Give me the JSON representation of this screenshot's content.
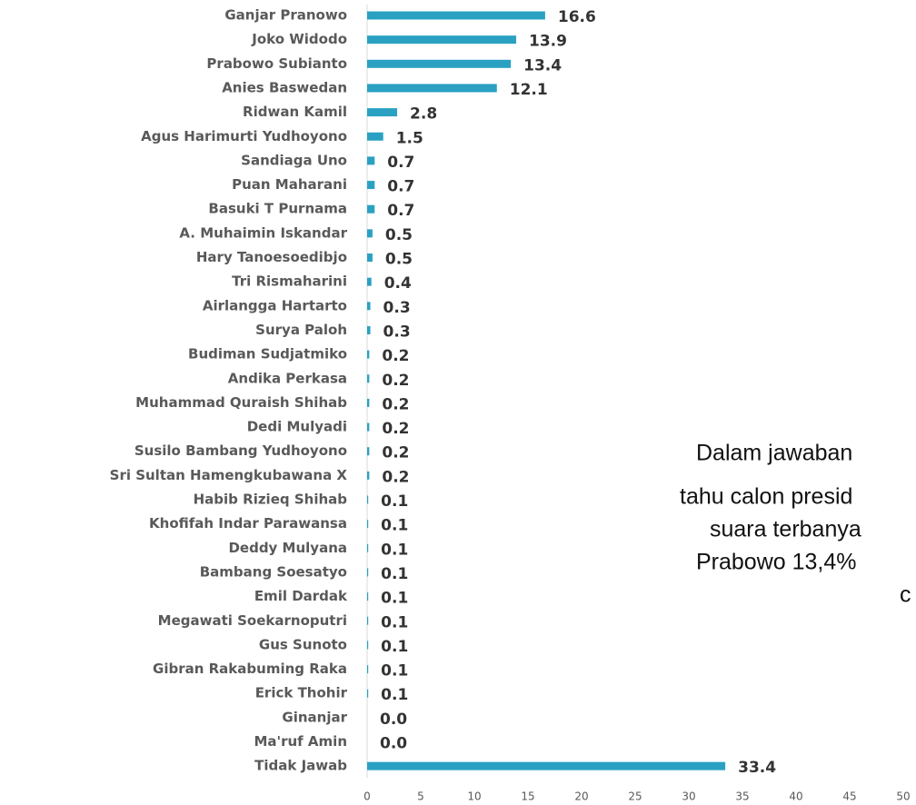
{
  "chart_data": {
    "type": "bar",
    "orientation": "horizontal",
    "color": "#2aa1c2",
    "categories": [
      "Ganjar Pranowo",
      "Joko Widodo",
      "Prabowo Subianto",
      "Anies Baswedan",
      "Ridwan Kamil",
      "Agus Harimurti Yudhoyono",
      "Sandiaga Uno",
      "Puan Maharani",
      "Basuki T Purnama",
      "A. Muhaimin Iskandar",
      "Hary Tanoesoedibjo",
      "Tri Rismaharini",
      "Airlangga Hartarto",
      "Surya Paloh",
      "Budiman Sudjatmiko",
      "Andika Perkasa",
      "Muhammad Quraish Shihab",
      "Dedi Mulyadi",
      "Susilo Bambang Yudhoyono",
      "Sri Sultan Hamengkubawana X",
      "Habib Rizieq Shihab",
      "Khofifah Indar Parawansa",
      "Deddy Mulyana",
      "Bambang Soesatyo",
      "Emil Dardak",
      "Megawati Soekarnoputri",
      "Gus Sunoto",
      "Gibran Rakabuming Raka",
      "Erick Thohir",
      "Ginanjar",
      "Ma'ruf Amin",
      "Tidak Jawab"
    ],
    "values": [
      16.6,
      13.9,
      13.4,
      12.1,
      2.8,
      1.5,
      0.7,
      0.7,
      0.7,
      0.5,
      0.5,
      0.4,
      0.3,
      0.3,
      0.2,
      0.2,
      0.2,
      0.2,
      0.2,
      0.2,
      0.1,
      0.1,
      0.1,
      0.1,
      0.1,
      0.1,
      0.1,
      0.1,
      0.1,
      0.0,
      0.0,
      33.4
    ],
    "value_labels": [
      "16.6",
      "13.9",
      "13.4",
      "12.1",
      "2.8",
      "1.5",
      "0.7",
      "0.7",
      "0.7",
      "0.5",
      "0.5",
      "0.4",
      "0.3",
      "0.3",
      "0.2",
      "0.2",
      "0.2",
      "0.2",
      "0.2",
      "0.2",
      "0.1",
      "0.1",
      "0.1",
      "0.1",
      "0.1",
      "0.1",
      "0.1",
      "0.1",
      "0.1",
      "0.0",
      "0.0",
      "33.4"
    ],
    "xlim": [
      0,
      50
    ],
    "xticks": [
      0,
      5,
      10,
      15,
      20,
      25,
      30,
      35,
      40,
      45,
      50
    ],
    "annotation": [
      "Dalam jawaban",
      "tahu calon presid",
      "suara terbanya",
      "Prabowo 13,4%",
      "c"
    ]
  }
}
